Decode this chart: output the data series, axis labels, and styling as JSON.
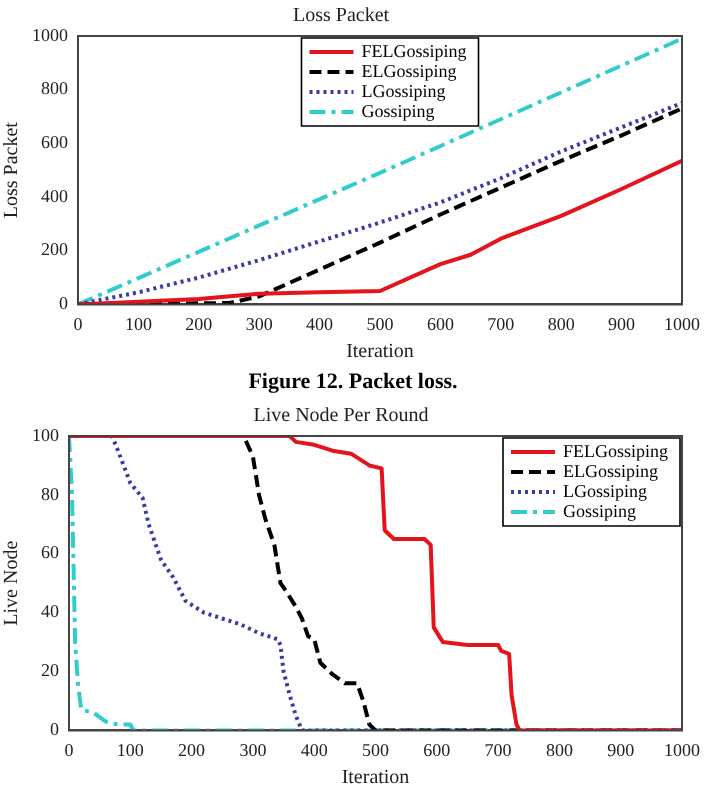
{
  "chart_data": [
    {
      "type": "line",
      "title": "Loss Packet",
      "xlabel": "Iteration",
      "ylabel": "Loss Packet",
      "xlim": [
        0,
        1000
      ],
      "xticks": [
        0,
        100,
        200,
        300,
        400,
        500,
        600,
        700,
        800,
        900,
        1000
      ],
      "ylim": [
        0,
        1000
      ],
      "yticks": [
        0,
        200,
        400,
        600,
        800,
        1000
      ],
      "grid": false,
      "legend": "top",
      "marker": "none",
      "annotations": [
        "Figure 12. Packet loss."
      ],
      "series": [
        {
          "name": "FELGossiping",
          "color": "#e3141b",
          "line_style": "solid",
          "x": [
            0,
            100,
            200,
            300,
            400,
            500,
            600,
            650,
            700,
            800,
            900,
            1000
          ],
          "values": [
            0,
            10,
            20,
            40,
            45,
            50,
            150,
            185,
            245,
            330,
            430,
            535
          ]
        },
        {
          "name": "ELGossiping",
          "color": "#000000",
          "line_style": "dashed",
          "x": [
            0,
            250,
            300,
            400,
            500,
            600,
            700,
            800,
            900,
            1000
          ],
          "values": [
            0,
            5,
            30,
            130,
            230,
            335,
            435,
            535,
            630,
            730
          ]
        },
        {
          "name": "LGossiping",
          "color": "#3a3aa8",
          "line_style": "dotted",
          "x": [
            0,
            100,
            200,
            300,
            400,
            500,
            600,
            700,
            800,
            900,
            1000
          ],
          "values": [
            0,
            45,
            100,
            165,
            235,
            305,
            380,
            470,
            570,
            660,
            750
          ]
        },
        {
          "name": "Gossiping",
          "color": "#33cccc",
          "line_style": "dashdot",
          "x": [
            0,
            500,
            1000
          ],
          "values": [
            0,
            490,
            990
          ]
        }
      ]
    },
    {
      "type": "line",
      "title": "Live Node Per Round",
      "xlabel": "Iteration",
      "ylabel": "Live Node",
      "xlim": [
        0,
        1000
      ],
      "xticks": [
        0,
        100,
        200,
        300,
        400,
        500,
        600,
        700,
        800,
        900,
        1000
      ],
      "ylim": [
        0,
        100
      ],
      "yticks": [
        0,
        20,
        40,
        60,
        80,
        100
      ],
      "grid": false,
      "legend": "top right",
      "marker": "none",
      "series": [
        {
          "name": "FELGossiping",
          "color": "#e3141b",
          "line_style": "solid",
          "x": [
            0,
            360,
            370,
            400,
            430,
            460,
            490,
            510,
            515,
            530,
            580,
            590,
            595,
            610,
            650,
            700,
            705,
            718,
            722,
            730,
            735,
            1000
          ],
          "values": [
            100,
            100,
            98,
            97,
            95,
            94,
            90,
            89,
            68,
            65,
            65,
            63,
            35,
            30,
            29,
            29,
            27,
            26,
            12,
            2,
            0,
            0
          ]
        },
        {
          "name": "ELGossiping",
          "color": "#000000",
          "line_style": "dashed",
          "x": [
            0,
            285,
            300,
            310,
            320,
            335,
            345,
            355,
            370,
            380,
            390,
            400,
            410,
            430,
            450,
            470,
            480,
            490,
            500,
            1000
          ],
          "values": [
            100,
            100,
            93,
            80,
            72,
            63,
            50,
            47,
            42,
            38,
            32,
            31,
            23,
            19,
            16,
            16,
            10,
            2,
            0,
            0
          ]
        },
        {
          "name": "LGossiping",
          "color": "#3a3aa8",
          "line_style": "dotted",
          "x": [
            0,
            70,
            80,
            100,
            120,
            130,
            150,
            170,
            190,
            220,
            250,
            280,
            310,
            340,
            345,
            350,
            360,
            370,
            380,
            1000
          ],
          "values": [
            100,
            100,
            95,
            84,
            79,
            70,
            58,
            52,
            44,
            40,
            38,
            36,
            33,
            31,
            29,
            20,
            12,
            5,
            0,
            0
          ]
        },
        {
          "name": "Gossiping",
          "color": "#33cccc",
          "line_style": "dashdot",
          "x": [
            0,
            5,
            10,
            15,
            20,
            40,
            60,
            80,
            100,
            105,
            1000
          ],
          "values": [
            100,
            80,
            30,
            15,
            7,
            6,
            3,
            2,
            2,
            0,
            0
          ]
        }
      ]
    }
  ]
}
